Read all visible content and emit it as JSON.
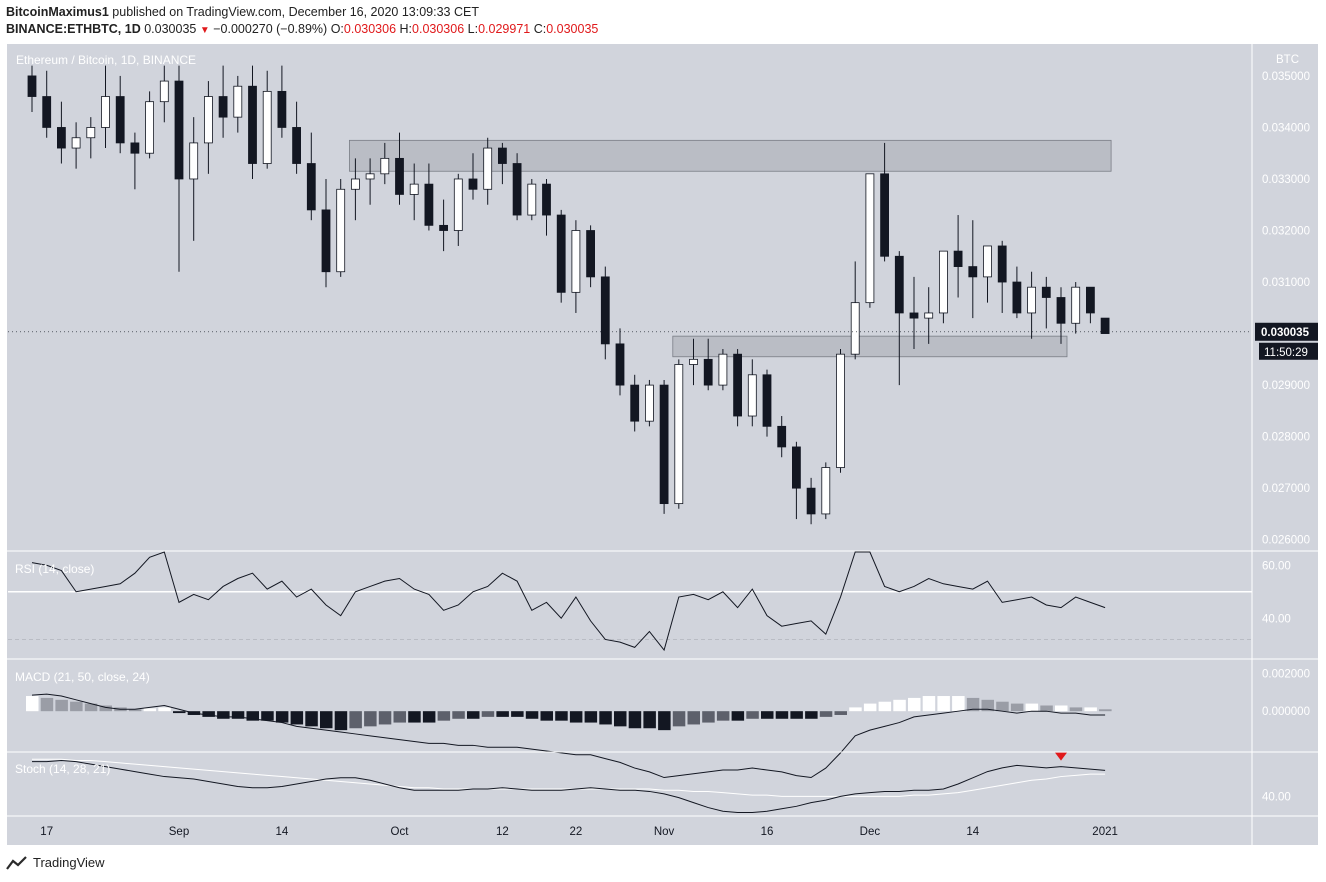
{
  "header": {
    "author": "BitcoinMaximus1",
    "published_text": "published on TradingView.com, December 16, 2020 13:09:33 CET",
    "symbol": "BINANCE:ETHBTC, 1D",
    "last": "0.030035",
    "change": "−0.000270 (−0.89%)",
    "o_label": "O:",
    "o": "0.030306",
    "h_label": "H:",
    "h": "0.030306",
    "l_label": "L:",
    "l": "0.029971",
    "c_label": "C:",
    "c": "0.030035"
  },
  "colors": {
    "background": "#d1d4dc",
    "up_candle": "#ffffff",
    "down_candle": "#131722",
    "zone": "#b2b5be",
    "signal_marker": "#e0191b"
  },
  "price_badge": "0.030035",
  "countdown_badge": "11:50:29",
  "footer_brand": "TradingView",
  "chart_data": [
    {
      "type": "candlestick",
      "title": "Ethereum / Bitcoin, 1D, BINANCE",
      "currency_label": "BTC",
      "y_ticks": [
        "0.035000",
        "0.034000",
        "0.033000",
        "0.032000",
        "0.031000",
        "0.030000",
        "0.029000",
        "0.028000",
        "0.027000",
        "0.026000"
      ],
      "ylim": [
        0.0258,
        0.0356
      ],
      "x_ticks": [
        "17",
        "Sep",
        "14",
        "Oct",
        "12",
        "22",
        "Nov",
        "16",
        "Dec",
        "14",
        "2021"
      ],
      "x_tick_index": [
        1,
        10,
        17,
        25,
        32,
        37,
        43,
        50,
        57,
        64,
        73
      ],
      "zones": [
        {
          "start_index": 22,
          "end_index": 73,
          "low": 0.03315,
          "high": 0.03375
        },
        {
          "start_index": 44,
          "end_index": 70,
          "low": 0.02955,
          "high": 0.02995
        }
      ],
      "ohlc": [
        [
          0.035,
          0.0352,
          0.0343,
          0.0346
        ],
        [
          0.0346,
          0.0351,
          0.0338,
          0.034
        ],
        [
          0.034,
          0.0345,
          0.0333,
          0.0336
        ],
        [
          0.0336,
          0.0341,
          0.0332,
          0.0338
        ],
        [
          0.0338,
          0.0342,
          0.0334,
          0.034
        ],
        [
          0.034,
          0.0352,
          0.0336,
          0.0346
        ],
        [
          0.0346,
          0.035,
          0.0335,
          0.0337
        ],
        [
          0.0337,
          0.0339,
          0.0328,
          0.0335
        ],
        [
          0.0335,
          0.0347,
          0.0334,
          0.0345
        ],
        [
          0.0345,
          0.0352,
          0.0341,
          0.0349
        ],
        [
          0.0349,
          0.0352,
          0.0312,
          0.033
        ],
        [
          0.033,
          0.0342,
          0.0318,
          0.0337
        ],
        [
          0.0337,
          0.0349,
          0.0331,
          0.0346
        ],
        [
          0.0346,
          0.0352,
          0.0338,
          0.0342
        ],
        [
          0.0342,
          0.035,
          0.0339,
          0.0348
        ],
        [
          0.0348,
          0.0352,
          0.033,
          0.0333
        ],
        [
          0.0333,
          0.0351,
          0.0332,
          0.0347
        ],
        [
          0.0347,
          0.0352,
          0.0338,
          0.034
        ],
        [
          0.034,
          0.0345,
          0.0331,
          0.0333
        ],
        [
          0.0333,
          0.0339,
          0.0322,
          0.0324
        ],
        [
          0.0324,
          0.033,
          0.0309,
          0.0312
        ],
        [
          0.0312,
          0.033,
          0.0311,
          0.0328
        ],
        [
          0.0328,
          0.0334,
          0.0322,
          0.033
        ],
        [
          0.033,
          0.0334,
          0.0325,
          0.0331
        ],
        [
          0.0331,
          0.0337,
          0.0329,
          0.0334
        ],
        [
          0.0334,
          0.0339,
          0.0325,
          0.0327
        ],
        [
          0.0327,
          0.0333,
          0.0322,
          0.0329
        ],
        [
          0.0329,
          0.0333,
          0.032,
          0.0321
        ],
        [
          0.0321,
          0.0326,
          0.0316,
          0.032
        ],
        [
          0.032,
          0.0331,
          0.0317,
          0.033
        ],
        [
          0.033,
          0.0335,
          0.0326,
          0.0328
        ],
        [
          0.0328,
          0.0338,
          0.0325,
          0.0336
        ],
        [
          0.0336,
          0.0337,
          0.0329,
          0.0333
        ],
        [
          0.0333,
          0.0335,
          0.0322,
          0.0323
        ],
        [
          0.0323,
          0.033,
          0.0322,
          0.0329
        ],
        [
          0.0329,
          0.033,
          0.0319,
          0.0323
        ],
        [
          0.0323,
          0.0324,
          0.0306,
          0.0308
        ],
        [
          0.0308,
          0.0322,
          0.0304,
          0.032
        ],
        [
          0.032,
          0.0321,
          0.0309,
          0.0311
        ],
        [
          0.0311,
          0.0313,
          0.0295,
          0.0298
        ],
        [
          0.0298,
          0.0301,
          0.0288,
          0.029
        ],
        [
          0.029,
          0.0292,
          0.0281,
          0.0283
        ],
        [
          0.0283,
          0.0291,
          0.0282,
          0.029
        ],
        [
          0.029,
          0.0291,
          0.0265,
          0.0267
        ],
        [
          0.0267,
          0.0295,
          0.0266,
          0.0294
        ],
        [
          0.0294,
          0.0299,
          0.029,
          0.0295
        ],
        [
          0.0295,
          0.0299,
          0.0289,
          0.029
        ],
        [
          0.029,
          0.0297,
          0.0289,
          0.0296
        ],
        [
          0.0296,
          0.0297,
          0.0282,
          0.0284
        ],
        [
          0.0284,
          0.0295,
          0.0282,
          0.0292
        ],
        [
          0.0292,
          0.0293,
          0.028,
          0.0282
        ],
        [
          0.0282,
          0.0284,
          0.0276,
          0.0278
        ],
        [
          0.0278,
          0.0279,
          0.0264,
          0.027
        ],
        [
          0.027,
          0.0272,
          0.0263,
          0.0265
        ],
        [
          0.0265,
          0.0275,
          0.0264,
          0.0274
        ],
        [
          0.0274,
          0.0297,
          0.0273,
          0.0296
        ],
        [
          0.0296,
          0.0314,
          0.0295,
          0.0306
        ],
        [
          0.0306,
          0.0331,
          0.0305,
          0.0331
        ],
        [
          0.0331,
          0.0337,
          0.0314,
          0.0315
        ],
        [
          0.0315,
          0.0316,
          0.029,
          0.0304
        ],
        [
          0.0304,
          0.0311,
          0.0297,
          0.0303
        ],
        [
          0.0303,
          0.0309,
          0.0298,
          0.0304
        ],
        [
          0.0304,
          0.0316,
          0.0302,
          0.0316
        ],
        [
          0.0316,
          0.0323,
          0.0307,
          0.0313
        ],
        [
          0.0313,
          0.0322,
          0.0303,
          0.0311
        ],
        [
          0.0311,
          0.0317,
          0.0306,
          0.0317
        ],
        [
          0.0317,
          0.0318,
          0.0304,
          0.031
        ],
        [
          0.031,
          0.0313,
          0.0303,
          0.0304
        ],
        [
          0.0304,
          0.0312,
          0.0299,
          0.0309
        ],
        [
          0.0309,
          0.0311,
          0.0301,
          0.0307
        ],
        [
          0.0307,
          0.0309,
          0.0298,
          0.0302
        ],
        [
          0.0302,
          0.031,
          0.03,
          0.0309
        ],
        [
          0.0309,
          0.0309,
          0.0302,
          0.0304
        ],
        [
          0.0303,
          0.0303,
          0.03,
          0.03
        ]
      ]
    },
    {
      "type": "line",
      "title": "RSI (14, close)",
      "y_ticks": [
        "60.00",
        "40.00"
      ],
      "ylim": [
        25,
        65
      ],
      "levels": [
        50,
        32
      ],
      "values": [
        61,
        60,
        58,
        50,
        51,
        52,
        53,
        57,
        63,
        68,
        46,
        49,
        47,
        52,
        55,
        57,
        51,
        54,
        48,
        51,
        45,
        41,
        50,
        52,
        54,
        55,
        51,
        49,
        43,
        45,
        50,
        52,
        57,
        54,
        43,
        46,
        40,
        48,
        39,
        32,
        31,
        29,
        35,
        28,
        48,
        49,
        47,
        50,
        44,
        51,
        41,
        37,
        38,
        39,
        34,
        48,
        74,
        70,
        52,
        50,
        52,
        55,
        53,
        52,
        51,
        54,
        46,
        47,
        48,
        45,
        44,
        48,
        46,
        44
      ]
    },
    {
      "type": "histogram",
      "title": "MACD (21, 50, close, 24)",
      "y_ticks": [
        "0.002000",
        "0.000000"
      ],
      "ylim": [
        -0.0021,
        0.0027
      ],
      "macd": [
        0.00085,
        0.0009,
        0.0008,
        0.0006,
        0.0004,
        0.0002,
        0.0001,
        0.0001,
        0.0002,
        0.0003,
        0.0001,
        -0.0001,
        -0.0002,
        -0.0003,
        -0.0003,
        -0.0004,
        -0.0005,
        -0.0006,
        -0.0008,
        -0.0009,
        -0.001,
        -0.0011,
        -0.0012,
        -0.0013,
        -0.0014,
        -0.0015,
        -0.0016,
        -0.0017,
        -0.0017,
        -0.0018,
        -0.0018,
        -0.0019,
        -0.0019,
        -0.0019,
        -0.002,
        -0.0021,
        -0.0022,
        -0.0023,
        -0.0023,
        -0.0025,
        -0.0027,
        -0.003,
        -0.0032,
        -0.0035,
        -0.0034,
        -0.0033,
        -0.0032,
        -0.0031,
        -0.0031,
        -0.003,
        -0.0031,
        -0.0032,
        -0.0034,
        -0.0035,
        -0.003,
        -0.0022,
        -0.0013,
        -0.001,
        -0.0008,
        -0.0006,
        -0.0003,
        -0.0002,
        -0.0001,
        0.0,
        0.0001,
        0.0001,
        0.0,
        -0.0001,
        0.0,
        0.0,
        -0.0001,
        -0.0001,
        -0.0002,
        -0.0002
      ],
      "histogram": [
        0.0008,
        0.0007,
        0.0006,
        0.0005,
        0.0004,
        0.0003,
        0.0002,
        0.0001,
        0.00015,
        0.0002,
        -0.0001,
        -0.0002,
        -0.0003,
        -0.0004,
        -0.0004,
        -0.0005,
        -0.0005,
        -0.0006,
        -0.0007,
        -0.0008,
        -0.0009,
        -0.001,
        -0.0009,
        -0.0008,
        -0.0007,
        -0.0006,
        -0.0006,
        -0.0006,
        -0.0005,
        -0.0004,
        -0.0004,
        -0.0003,
        -0.0003,
        -0.0003,
        -0.0004,
        -0.0005,
        -0.0005,
        -0.0006,
        -0.0006,
        -0.0007,
        -0.0008,
        -0.0009,
        -0.0009,
        -0.001,
        -0.0008,
        -0.0007,
        -0.0006,
        -0.0005,
        -0.0005,
        -0.0004,
        -0.0004,
        -0.0004,
        -0.0004,
        -0.0004,
        -0.0003,
        -0.0002,
        0.0002,
        0.0004,
        0.0005,
        0.0006,
        0.0007,
        0.0008,
        0.0008,
        0.0008,
        0.0007,
        0.0006,
        0.0005,
        0.0004,
        0.0004,
        0.0003,
        0.0003,
        0.0002,
        0.0002,
        0.0001
      ]
    },
    {
      "type": "line",
      "title": "Stoch (14, 28, 21)",
      "y_ticks": [
        "40.00"
      ],
      "ylim": [
        25,
        75
      ],
      "k": [
        68,
        68,
        69,
        68,
        66,
        64,
        62,
        60,
        58,
        56,
        55,
        54,
        52,
        50,
        48,
        47,
        47,
        48,
        50,
        52,
        54,
        55,
        55,
        53,
        50,
        47,
        45,
        45,
        45,
        45,
        46,
        46,
        47,
        46,
        45,
        45,
        45,
        46,
        47,
        46,
        45,
        45,
        44,
        42,
        39,
        35,
        31,
        28,
        27,
        27,
        28,
        30,
        32,
        35,
        37,
        40,
        42,
        43,
        44,
        44,
        45,
        45,
        46,
        50,
        55,
        60,
        63,
        65,
        64,
        63,
        64,
        63,
        62,
        61
      ],
      "d": [
        70,
        70,
        70,
        69,
        69,
        68,
        67,
        66,
        65,
        64,
        63,
        62,
        61,
        60,
        59,
        58,
        57,
        56,
        55,
        54,
        53,
        52,
        51,
        50,
        49,
        48,
        47,
        47,
        46,
        46,
        46,
        46,
        46,
        46,
        46,
        46,
        46,
        46,
        46,
        46,
        46,
        46,
        46,
        45,
        45,
        44,
        44,
        43,
        42,
        41,
        41,
        40,
        40,
        40,
        40,
        40,
        40,
        40,
        40,
        40,
        41,
        41,
        42,
        43,
        45,
        47,
        49,
        51,
        53,
        54,
        56,
        57,
        58,
        58
      ],
      "signal_marker_index": 70
    }
  ]
}
